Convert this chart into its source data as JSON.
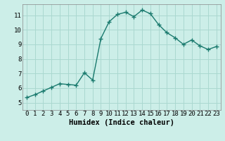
{
  "xlabel": "Humidex (Indice chaleur)",
  "x": [
    0,
    1,
    2,
    3,
    4,
    5,
    6,
    7,
    8,
    9,
    10,
    11,
    12,
    13,
    14,
    15,
    16,
    17,
    18,
    19,
    20,
    21,
    22,
    23
  ],
  "y": [
    5.35,
    5.55,
    5.8,
    6.05,
    6.3,
    6.25,
    6.2,
    7.05,
    6.55,
    9.4,
    10.55,
    11.05,
    11.2,
    10.9,
    11.35,
    11.1,
    10.35,
    9.8,
    9.45,
    9.0,
    9.3,
    8.9,
    8.65,
    8.85
  ],
  "line_color": "#1a7a6e",
  "marker": "+",
  "marker_size": 4,
  "bg_color": "#cceee8",
  "grid_color": "#aad8d0",
  "ylim": [
    4.5,
    11.75
  ],
  "xlim": [
    -0.5,
    23.5
  ],
  "yticks": [
    5,
    6,
    7,
    8,
    9,
    10,
    11
  ],
  "xticks": [
    0,
    1,
    2,
    3,
    4,
    5,
    6,
    7,
    8,
    9,
    10,
    11,
    12,
    13,
    14,
    15,
    16,
    17,
    18,
    19,
    20,
    21,
    22,
    23
  ],
  "xlabel_fontsize": 7.5,
  "tick_fontsize": 6.5,
  "line_width": 1.0
}
